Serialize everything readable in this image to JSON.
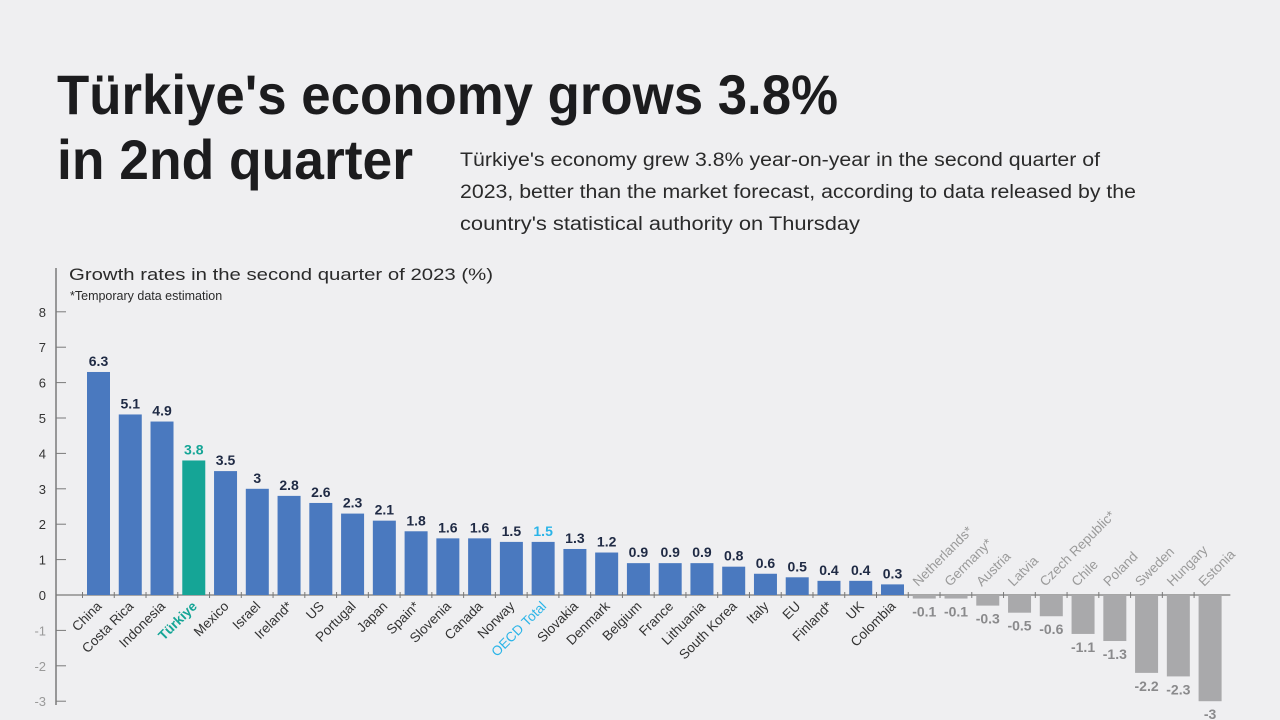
{
  "header": {
    "title_line1": "Türkiye's economy grows 3.8%",
    "title_line2": "in 2nd quarter",
    "subtitle_lines": [
      "Türkiye's economy grew 3.8% year-on-year in the second quarter of",
      "2023, better than the market forecast, according to data released by the",
      "country's statistical authority on Thursday"
    ]
  },
  "chart_data": {
    "type": "bar",
    "title": "Growth rates in the second quarter of 2023 (%)",
    "note": "*Temporary data estimation",
    "xlabel": "",
    "ylabel": "",
    "ylim": [
      -3,
      8
    ],
    "yticks": [
      8,
      7,
      6,
      5,
      4,
      3,
      2,
      1,
      0,
      -1,
      -2,
      -3
    ],
    "grid": false,
    "categories": [
      "China",
      "Costa Rica",
      "Indonesia",
      "Türkiye",
      "Mexico",
      "Israel",
      "Ireland*",
      "US",
      "Portugal",
      "Japan",
      "Spain*",
      "Slovenia",
      "Canada",
      "Norway",
      "OECD Total",
      "Slovakia",
      "Denmark",
      "Belgium",
      "France",
      "Lithuania",
      "South Korea",
      "Italy",
      "EU",
      "Finland*",
      "UK",
      "Colombia",
      "Netherlands*",
      "Germany*",
      "Austria",
      "Latvia",
      "Czech Republic*",
      "Chile",
      "Poland",
      "Sweden",
      "Hungary",
      "Estonia"
    ],
    "values": [
      6.3,
      5.1,
      4.9,
      3.8,
      3.5,
      3,
      2.8,
      2.6,
      2.3,
      2.1,
      1.8,
      1.6,
      1.6,
      1.5,
      1.5,
      1.3,
      1.2,
      0.9,
      0.9,
      0.9,
      0.8,
      0.6,
      0.5,
      0.4,
      0.4,
      0.3,
      -0.1,
      -0.1,
      -0.3,
      -0.5,
      -0.6,
      -1.1,
      -1.3,
      -2.2,
      -2.3,
      -3
    ],
    "highlights": {
      "Türkiye": "#15a596",
      "OECD Total": "#2ab4e8"
    },
    "colors": {
      "positive": "#4a79bf",
      "negative": "#a9a9ab",
      "positive_label": "#1f2a44",
      "negative_label": "#8a8a8c",
      "axis": "#7a7a7a"
    }
  }
}
